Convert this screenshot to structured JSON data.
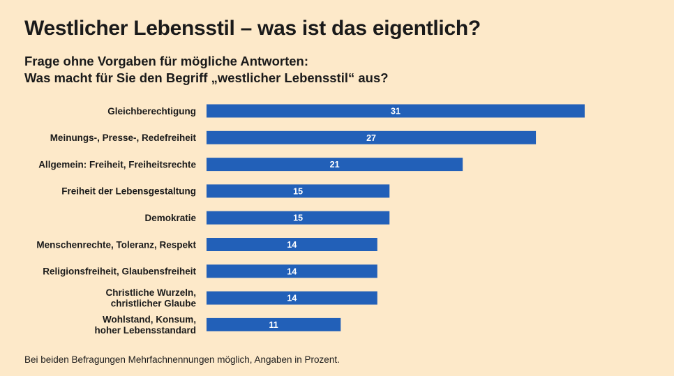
{
  "title": "Westlicher Lebensstil – was ist das eigentlich?",
  "subtitle": {
    "line1": "Frage ohne Vorgaben für mögliche Antworten:",
    "line2": "Was macht für Sie den Begriff „westlicher Lebensstil“ aus?"
  },
  "footnote": "Bei beiden Befragungen Mehrfachnennungen möglich, Angaben in Prozent.",
  "colors": {
    "background": "#fde9c9",
    "bar": "#2260b8"
  },
  "chart_data": {
    "type": "bar",
    "orientation": "horizontal",
    "title": "Westlicher Lebensstil – was ist das eigentlich?",
    "xlabel": "",
    "ylabel": "",
    "unit": "Prozent",
    "xlim": [
      0,
      31
    ],
    "categories": [
      [
        "Gleichberechtigung"
      ],
      [
        "Meinungs-, Presse-, Redefreiheit"
      ],
      [
        "Allgemein: Freiheit, Freiheitsrechte"
      ],
      [
        "Freiheit der Lebensgestaltung"
      ],
      [
        "Demokratie"
      ],
      [
        "Menschenrechte, Toleranz, Respekt"
      ],
      [
        "Religionsfreiheit, Glaubensfreiheit"
      ],
      [
        "Christliche Wurzeln,",
        "christlicher Glaube"
      ],
      [
        "Wohlstand, Konsum,",
        "hoher Lebensstandard"
      ]
    ],
    "values": [
      31,
      27,
      21,
      15,
      15,
      14,
      14,
      14,
      11
    ]
  }
}
